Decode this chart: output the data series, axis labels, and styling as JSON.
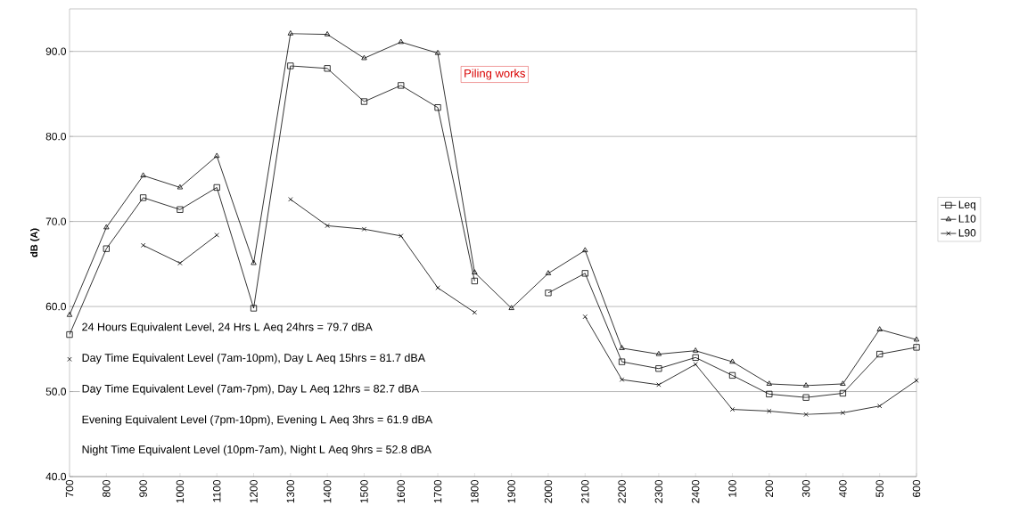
{
  "chart_data": {
    "type": "line",
    "ylabel": "dB (A)",
    "categories": [
      "700",
      "800",
      "900",
      "1000",
      "1100",
      "1200",
      "1300",
      "1400",
      "1500",
      "1600",
      "1700",
      "1800",
      "1900",
      "2000",
      "2100",
      "2200",
      "2300",
      "2400",
      "100",
      "200",
      "300",
      "400",
      "500",
      "600"
    ],
    "series": [
      {
        "name": "Leq",
        "color": "#000000",
        "marker": "square",
        "values": [
          56.7,
          66.8,
          72.8,
          71.4,
          74.0,
          59.8,
          88.3,
          88.0,
          84.1,
          86.0,
          83.4,
          63.0,
          null,
          61.6,
          63.9,
          53.5,
          52.7,
          54.0,
          51.9,
          49.7,
          49.3,
          49.8,
          54.4,
          55.2
        ]
      },
      {
        "name": "L10",
        "color": "#000000",
        "marker": "triangle",
        "values": [
          59.0,
          69.3,
          75.4,
          74.0,
          77.7,
          65.1,
          92.1,
          92.0,
          89.2,
          91.1,
          89.8,
          64.0,
          59.8,
          63.9,
          66.6,
          55.1,
          54.4,
          54.8,
          53.5,
          50.9,
          50.7,
          50.9,
          57.3,
          56.1
        ]
      },
      {
        "name": "L90",
        "color": "#000000",
        "marker": "cross",
        "values": [
          53.8,
          null,
          67.2,
          65.1,
          68.4,
          null,
          72.6,
          69.5,
          69.1,
          68.3,
          62.2,
          59.3,
          null,
          null,
          58.8,
          51.4,
          50.8,
          53.2,
          47.9,
          47.7,
          47.3,
          47.5,
          48.3,
          51.3
        ]
      }
    ],
    "ylim": [
      40,
      95
    ],
    "yticks": [
      {
        "value": 40,
        "label": "40.0"
      },
      {
        "value": 50,
        "label": "50.0"
      },
      {
        "value": 60,
        "label": "60.0"
      },
      {
        "value": 70,
        "label": "70.0"
      },
      {
        "value": 80,
        "label": "80.0"
      },
      {
        "value": 90,
        "label": "90.0"
      }
    ],
    "grid": "y",
    "legend": "right",
    "line_style": "solid",
    "annotations": [
      "Piling works",
      "24 Hours Equivalent Level, 24 Hrs L Aeq 24hrs  =  79.7  dBA",
      "Day Time Equivalent Level (7am-10pm), Day L Aeq 15hrs  =  81.7  dBA",
      "Day Time Equivalent Level (7am-7pm), Day L Aeq 12hrs =  82.7  dBA",
      "Evening Equivalent Level (7pm-10pm), Evening L Aeq 3hrs =  61.9  dBA",
      "Night Time Equivalent Level (10pm-7am), Night L Aeq 9hrs =  52.8  dBA"
    ]
  }
}
